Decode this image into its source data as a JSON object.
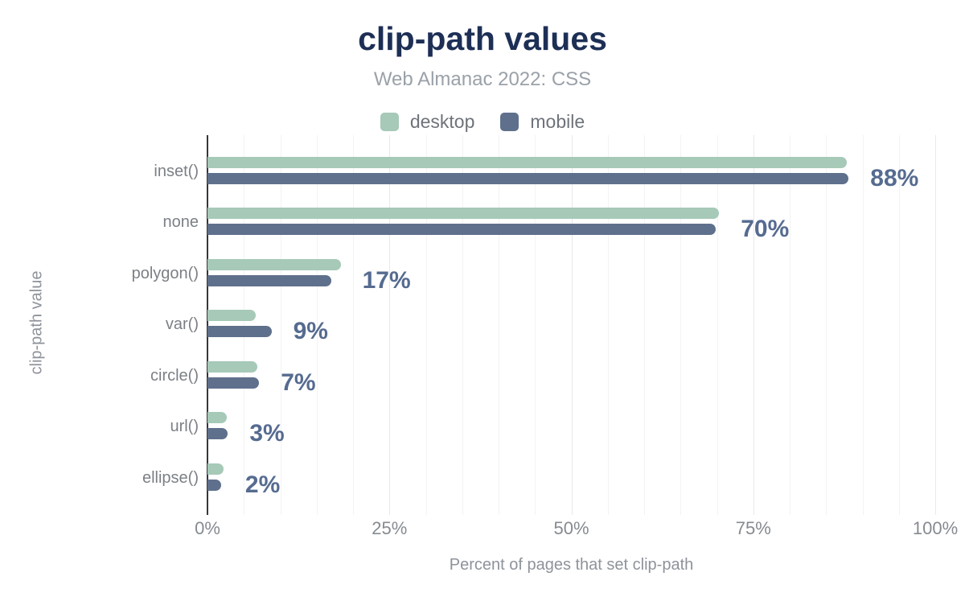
{
  "header": {
    "title": "clip-path values",
    "subtitle": "Web Almanac 2022: CSS"
  },
  "legend": [
    {
      "label": "desktop",
      "color": "#a6c9b8"
    },
    {
      "label": "mobile",
      "color": "#5f708c"
    }
  ],
  "chart_data": {
    "type": "bar",
    "orientation": "horizontal",
    "title": "clip-path values",
    "subtitle": "Web Almanac 2022: CSS",
    "categories": [
      "inset()",
      "none",
      "polygon()",
      "var()",
      "circle()",
      "url()",
      "ellipse()"
    ],
    "series": [
      {
        "name": "desktop",
        "color": "#a6c9b8",
        "values": [
          87.9,
          70.3,
          18.3,
          6.6,
          6.9,
          2.6,
          2.2
        ]
      },
      {
        "name": "mobile",
        "color": "#5f708c",
        "values": [
          88.1,
          69.8,
          17.0,
          8.8,
          7.1,
          2.8,
          1.9
        ]
      }
    ],
    "value_labels": [
      "88%",
      "70%",
      "17%",
      "9%",
      "7%",
      "3%",
      "2%"
    ],
    "xlabel": "Percent of pages that set clip-path",
    "ylabel": "clip-path value",
    "x_ticks": [
      "0%",
      "25%",
      "50%",
      "75%",
      "100%"
    ],
    "x_tick_values": [
      0,
      25,
      50,
      75,
      100
    ],
    "xlim": [
      0,
      100
    ],
    "grid": "vertical minor every 5%, emphasized every 25%",
    "legend_position": "top center"
  },
  "colors": {
    "background": "#ffffff",
    "title": "#1d2f55",
    "subtitle": "#9aa1a8",
    "legend_text": "#6e737a",
    "desktop_bar": "#a6c9b8",
    "mobile_bar": "#5f708c",
    "value_label": "#566b90",
    "category_label": "#7b8086",
    "tick_label": "#868b91",
    "axis_title": "#8e939a",
    "axis_line": "#35373a",
    "grid_minor": "#f2f3f4",
    "grid_major": "#e7e9eb"
  }
}
